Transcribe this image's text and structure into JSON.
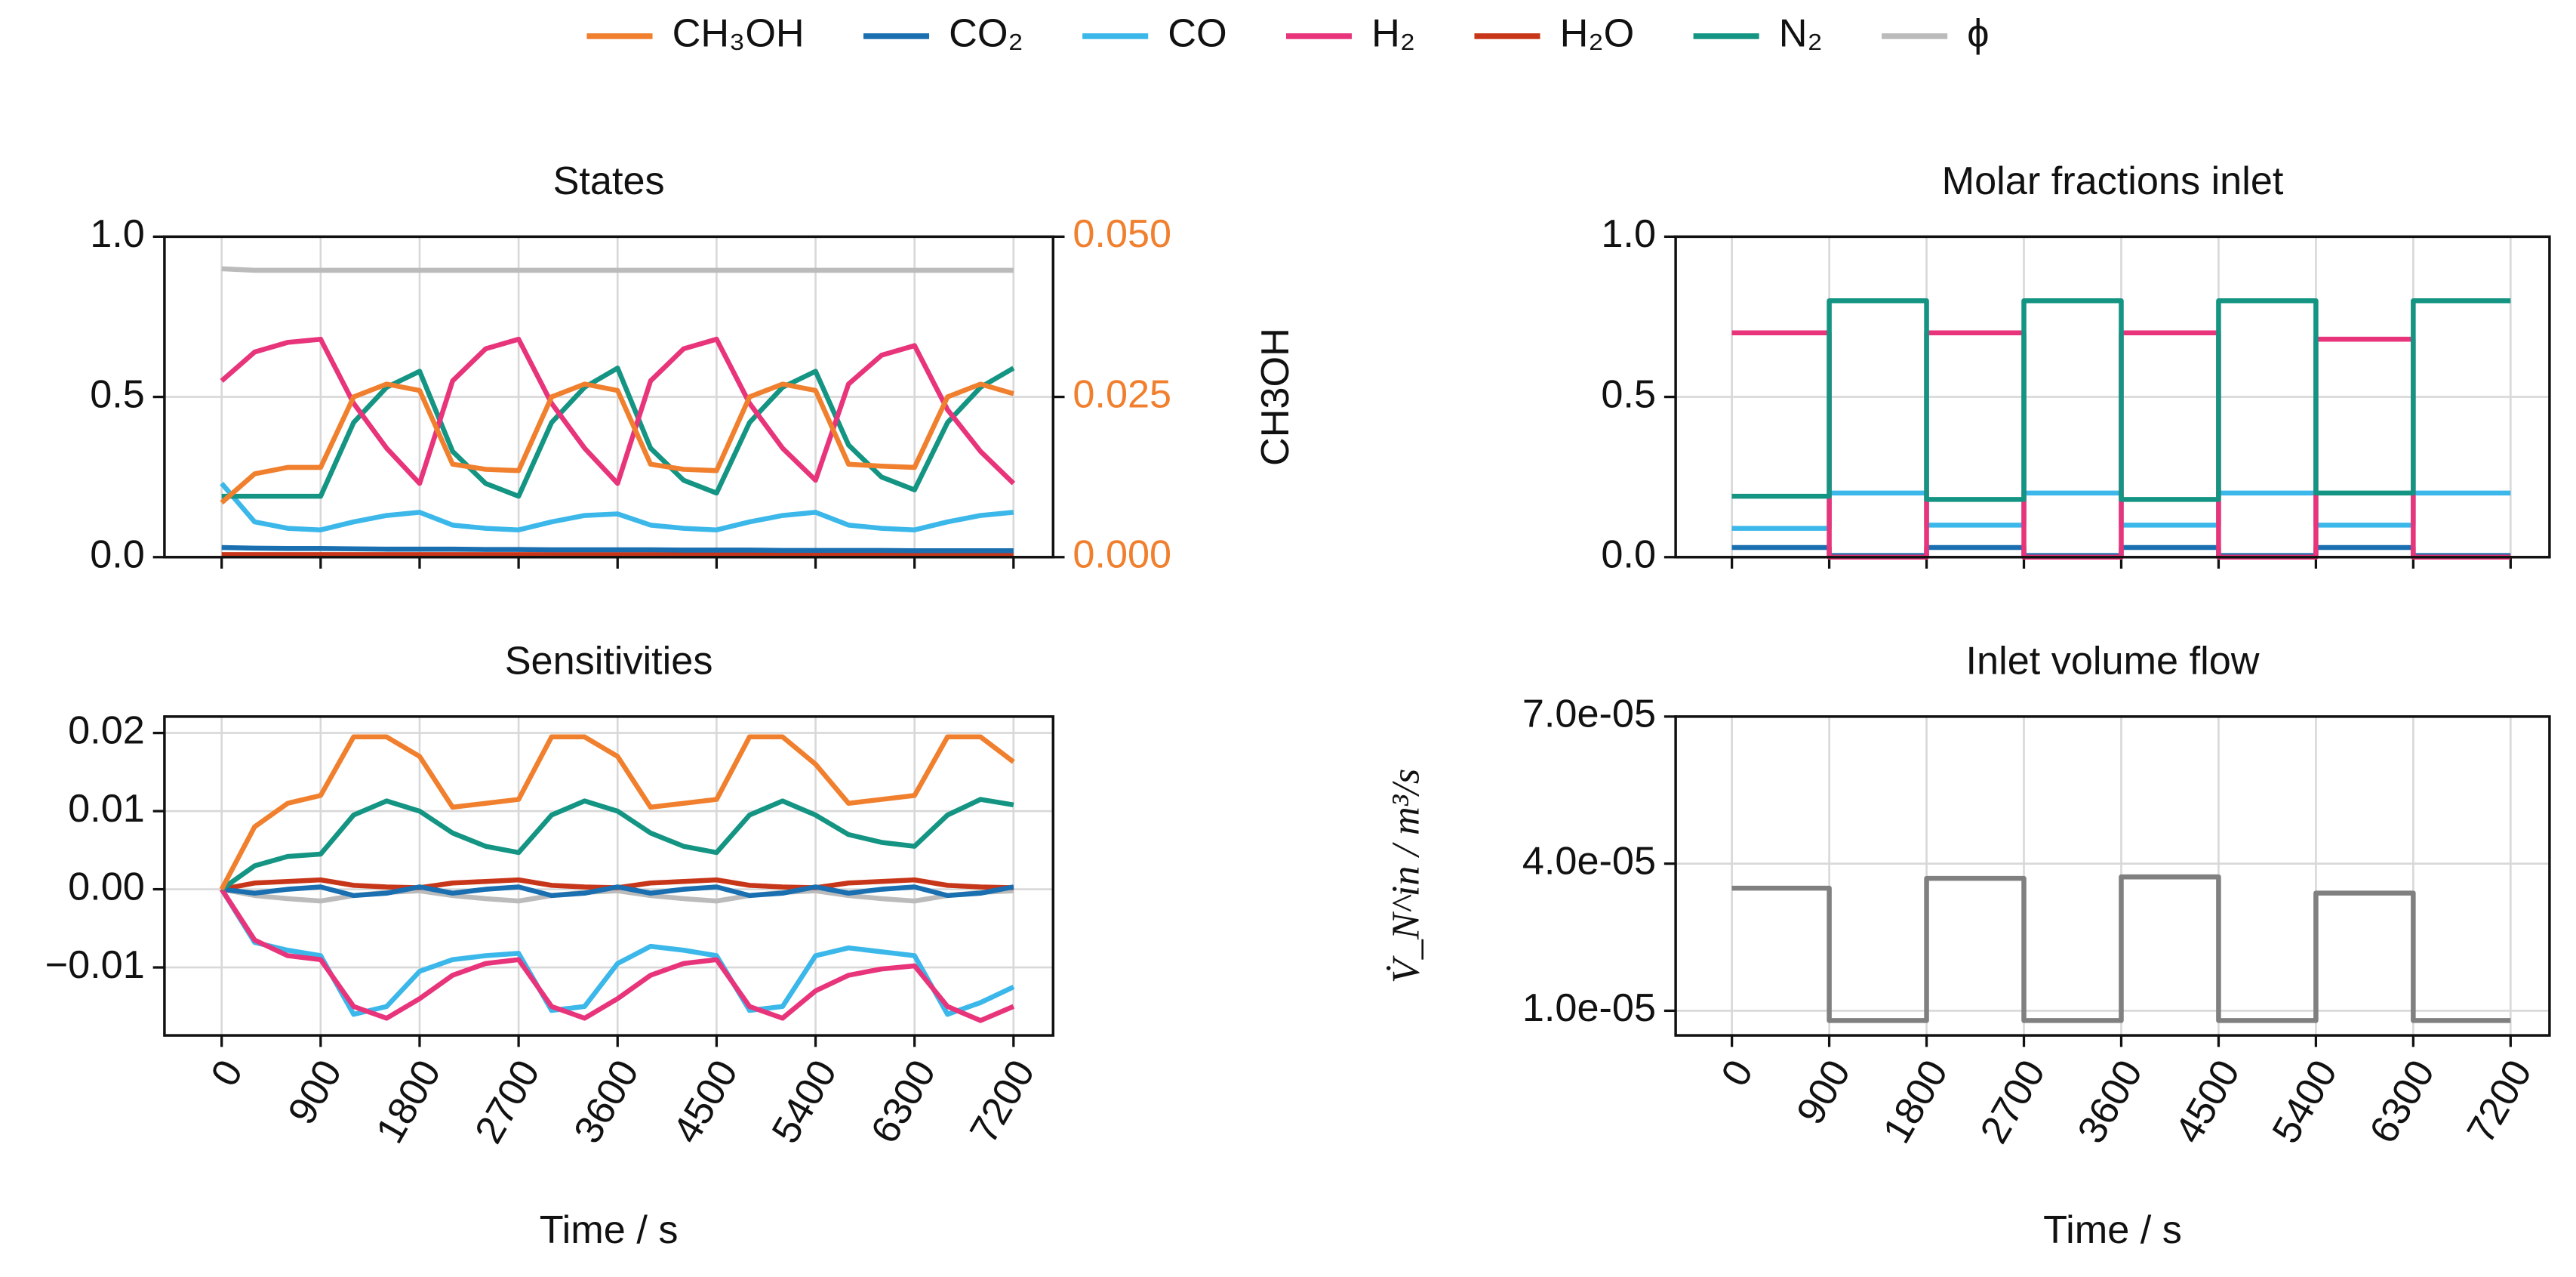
{
  "legend": [
    {
      "name": "CH₃OH",
      "color": "#f07f2e"
    },
    {
      "name": "CO₂",
      "color": "#1a6fb0"
    },
    {
      "name": "CO",
      "color": "#3bb7ea"
    },
    {
      "name": "H₂",
      "color": "#e8347a"
    },
    {
      "name": "H₂O",
      "color": "#c8361a"
    },
    {
      "name": "N₂",
      "color": "#149482"
    },
    {
      "name": "ϕ",
      "color": "#bbbbbb"
    }
  ],
  "legend_position": "upper center",
  "chart_data": [
    {
      "type": "line",
      "title": "States",
      "grid": true,
      "show_xticklabels": false,
      "y2label": "CH3OH",
      "x": [
        0,
        300,
        600,
        900,
        1200,
        1500,
        1800,
        2100,
        2400,
        2700,
        3000,
        3300,
        3600,
        3900,
        4200,
        4500,
        4800,
        5100,
        5400,
        5700,
        6000,
        6300,
        6600,
        6900,
        7200
      ],
      "xlim": [
        -520,
        7560
      ],
      "xticks": [
        0,
        900,
        1800,
        2700,
        3600,
        4500,
        5400,
        6300,
        7200
      ],
      "ylim": [
        0,
        1
      ],
      "yticks": [
        {
          "value": 0,
          "label": "0.0"
        },
        {
          "value": 0.5,
          "label": "0.5"
        },
        {
          "value": 1,
          "label": "1.0"
        }
      ],
      "y2lim": [
        0,
        0.05
      ],
      "y2ticks": [
        {
          "value": 0,
          "label": "0.000"
        },
        {
          "value": 0.025,
          "label": "0.025"
        },
        {
          "value": 0.05,
          "label": "0.050"
        }
      ],
      "series": [
        {
          "color": "#bbbbbb",
          "values": [
            0.9,
            0.895,
            0.895,
            0.895,
            0.895,
            0.895,
            0.895,
            0.895,
            0.895,
            0.895,
            0.895,
            0.895,
            0.895,
            0.895,
            0.895,
            0.895,
            0.895,
            0.895,
            0.895,
            0.895,
            0.895,
            0.895,
            0.895,
            0.895,
            0.895
          ]
        },
        {
          "color": "#c8361a",
          "values": [
            0.008,
            0.008,
            0.008,
            0.008,
            0.008,
            0.008,
            0.008,
            0.008,
            0.008,
            0.008,
            0.008,
            0.008,
            0.008,
            0.008,
            0.008,
            0.008,
            0.008,
            0.008,
            0.008,
            0.008,
            0.008,
            0.008,
            0.008,
            0.008,
            0.008
          ]
        },
        {
          "color": "#1a6fb0",
          "values": [
            0.03,
            0.028,
            0.027,
            0.027,
            0.026,
            0.025,
            0.025,
            0.025,
            0.024,
            0.024,
            0.023,
            0.023,
            0.023,
            0.023,
            0.022,
            0.022,
            0.022,
            0.021,
            0.021,
            0.021,
            0.021,
            0.02,
            0.02,
            0.02,
            0.02
          ]
        },
        {
          "color": "#3bb7ea",
          "values": [
            0.23,
            0.11,
            0.09,
            0.085,
            0.11,
            0.13,
            0.14,
            0.1,
            0.09,
            0.085,
            0.11,
            0.13,
            0.135,
            0.1,
            0.09,
            0.085,
            0.11,
            0.13,
            0.14,
            0.1,
            0.09,
            0.085,
            0.11,
            0.13,
            0.14
          ]
        },
        {
          "color": "#149482",
          "values": [
            0.19,
            0.19,
            0.19,
            0.19,
            0.42,
            0.53,
            0.58,
            0.33,
            0.23,
            0.19,
            0.42,
            0.53,
            0.59,
            0.34,
            0.24,
            0.2,
            0.42,
            0.53,
            0.58,
            0.35,
            0.25,
            0.21,
            0.42,
            0.53,
            0.59
          ]
        },
        {
          "color": "#e8347a",
          "values": [
            0.55,
            0.64,
            0.67,
            0.68,
            0.48,
            0.34,
            0.23,
            0.55,
            0.65,
            0.68,
            0.48,
            0.34,
            0.23,
            0.55,
            0.65,
            0.68,
            0.48,
            0.34,
            0.24,
            0.54,
            0.63,
            0.66,
            0.46,
            0.33,
            0.23
          ]
        },
        {
          "color": "#f07f2e",
          "axis": "y2",
          "values": [
            0.0085,
            0.013,
            0.014,
            0.014,
            0.025,
            0.027,
            0.026,
            0.0145,
            0.0137,
            0.0135,
            0.025,
            0.027,
            0.026,
            0.0145,
            0.0137,
            0.0135,
            0.025,
            0.027,
            0.026,
            0.0145,
            0.0142,
            0.014,
            0.025,
            0.027,
            0.0255
          ]
        }
      ]
    },
    {
      "type": "line",
      "title": "Molar fractions inlet",
      "grid": true,
      "show_xticklabels": false,
      "x": [
        0,
        900,
        900,
        1800,
        1800,
        2700,
        2700,
        3600,
        3600,
        4500,
        4500,
        5400,
        5400,
        6300,
        6300,
        7200
      ],
      "xlim": [
        -520,
        7560
      ],
      "xticks": [
        0,
        900,
        1800,
        2700,
        3600,
        4500,
        5400,
        6300,
        7200
      ],
      "ylim": [
        0,
        1
      ],
      "yticks": [
        {
          "value": 0,
          "label": "0.0"
        },
        {
          "value": 0.5,
          "label": "0.5"
        },
        {
          "value": 1,
          "label": "1.0"
        }
      ],
      "series": [
        {
          "color": "#1a6fb0",
          "values": [
            0.03,
            0.03,
            0.005,
            0.005,
            0.03,
            0.03,
            0.005,
            0.005,
            0.03,
            0.03,
            0.005,
            0.005,
            0.03,
            0.03,
            0.005,
            0.005
          ]
        },
        {
          "color": "#3bb7ea",
          "values": [
            0.09,
            0.09,
            0.2,
            0.2,
            0.1,
            0.1,
            0.2,
            0.2,
            0.1,
            0.1,
            0.2,
            0.2,
            0.1,
            0.1,
            0.2,
            0.2
          ]
        },
        {
          "color": "#e8347a",
          "values": [
            0.7,
            0.7,
            0,
            0,
            0.7,
            0.7,
            0,
            0,
            0.7,
            0.7,
            0,
            0,
            0.68,
            0.68,
            0,
            0
          ]
        },
        {
          "color": "#149482",
          "values": [
            0.19,
            0.19,
            0.8,
            0.8,
            0.18,
            0.18,
            0.8,
            0.8,
            0.18,
            0.18,
            0.8,
            0.8,
            0.2,
            0.2,
            0.8,
            0.8
          ]
        }
      ]
    },
    {
      "type": "line",
      "title": "Sensitivities",
      "grid": true,
      "show_xticklabels": true,
      "xlabel": "Time / s",
      "x": [
        0,
        300,
        600,
        900,
        1200,
        1500,
        1800,
        2100,
        2400,
        2700,
        3000,
        3300,
        3600,
        3900,
        4200,
        4500,
        4800,
        5100,
        5400,
        5700,
        6000,
        6300,
        6600,
        6900,
        7200
      ],
      "xlim": [
        -520,
        7560
      ],
      "xticks": [
        0,
        900,
        1800,
        2700,
        3600,
        4500,
        5400,
        6300,
        7200
      ],
      "ylim": [
        -0.0187,
        0.0221
      ],
      "yticks": [
        {
          "value": -0.01,
          "label": "−0.01"
        },
        {
          "value": 0,
          "label": "0.00"
        },
        0.01,
        0.02
      ],
      "series": [
        {
          "color": "#bbbbbb",
          "values": [
            0,
            -0.0008,
            -0.0012,
            -0.0015,
            -0.0008,
            -0.0004,
            -0.0002,
            -0.0008,
            -0.0012,
            -0.0015,
            -0.0008,
            -0.0004,
            -0.0002,
            -0.0008,
            -0.0012,
            -0.0015,
            -0.0008,
            -0.0004,
            -0.0002,
            -0.0008,
            -0.0012,
            -0.0015,
            -0.0008,
            -0.0004,
            -0.0002
          ]
        },
        {
          "color": "#c8361a",
          "values": [
            0,
            0.0008,
            0.001,
            0.0012,
            0.0005,
            0.0003,
            0.0002,
            0.0008,
            0.001,
            0.0012,
            0.0005,
            0.0003,
            0.0002,
            0.0008,
            0.001,
            0.0012,
            0.0005,
            0.0003,
            0.0002,
            0.0008,
            0.001,
            0.0012,
            0.0005,
            0.0003,
            0.0002
          ]
        },
        {
          "color": "#1a6fb0",
          "values": [
            0,
            -0.0005,
            0,
            0.0003,
            -0.0008,
            -0.0005,
            0.0003,
            -0.0005,
            0,
            0.0003,
            -0.0008,
            -0.0005,
            0.0003,
            -0.0005,
            0,
            0.0003,
            -0.0008,
            -0.0005,
            0.0003,
            -0.0005,
            0,
            0.0003,
            -0.0008,
            -0.0005,
            0.0003
          ]
        },
        {
          "color": "#3bb7ea",
          "values": [
            0,
            -0.0068,
            -0.0078,
            -0.0085,
            -0.016,
            -0.015,
            -0.0105,
            -0.009,
            -0.0085,
            -0.0082,
            -0.0155,
            -0.015,
            -0.0095,
            -0.0073,
            -0.0078,
            -0.0085,
            -0.0155,
            -0.015,
            -0.0085,
            -0.0075,
            -0.008,
            -0.0085,
            -0.016,
            -0.0145,
            -0.0125
          ]
        },
        {
          "color": "#e8347a",
          "values": [
            0,
            -0.0065,
            -0.0085,
            -0.009,
            -0.015,
            -0.0165,
            -0.014,
            -0.011,
            -0.0095,
            -0.009,
            -0.015,
            -0.0165,
            -0.014,
            -0.011,
            -0.0095,
            -0.009,
            -0.015,
            -0.0165,
            -0.013,
            -0.011,
            -0.0102,
            -0.0098,
            -0.015,
            -0.0168,
            -0.015
          ]
        },
        {
          "color": "#149482",
          "values": [
            0,
            0.003,
            0.0042,
            0.0045,
            0.0095,
            0.0113,
            0.01,
            0.0072,
            0.0055,
            0.0047,
            0.0095,
            0.0113,
            0.01,
            0.0072,
            0.0055,
            0.0047,
            0.0095,
            0.0113,
            0.0095,
            0.007,
            0.006,
            0.0055,
            0.0095,
            0.0115,
            0.0108
          ]
        },
        {
          "color": "#f07f2e",
          "values": [
            0,
            0.008,
            0.011,
            0.012,
            0.0195,
            0.0195,
            0.017,
            0.0105,
            0.011,
            0.0115,
            0.0195,
            0.0195,
            0.017,
            0.0105,
            0.011,
            0.0115,
            0.0195,
            0.0195,
            0.016,
            0.011,
            0.0115,
            0.012,
            0.0195,
            0.0195,
            0.0163
          ]
        }
      ]
    },
    {
      "type": "line",
      "title": "Inlet volume flow",
      "grid": true,
      "show_xticklabels": true,
      "xlabel": "Time / s",
      "ylabel": "V̇_N^in / m³/s",
      "x": [
        0,
        900,
        900,
        1800,
        1800,
        2700,
        2700,
        3600,
        3600,
        4500,
        4500,
        5400,
        5400,
        6300,
        6300,
        7200
      ],
      "xlim": [
        -520,
        7560
      ],
      "xticks": [
        0,
        900,
        1800,
        2700,
        3600,
        4500,
        5400,
        6300,
        7200
      ],
      "ylim": [
        4.97e-06,
        7e-05
      ],
      "yticks": [
        {
          "value": 1e-05,
          "label": "1.0e-05"
        },
        {
          "value": 4e-05,
          "label": "4.0e-05"
        },
        {
          "value": 7e-05,
          "label": "7.0e-05"
        }
      ],
      "series": [
        {
          "color": "#808080",
          "values": [
            3.5e-05,
            3.5e-05,
            8e-06,
            8e-06,
            3.7e-05,
            3.7e-05,
            8e-06,
            8e-06,
            3.73e-05,
            3.73e-05,
            8e-06,
            8e-06,
            3.4e-05,
            3.4e-05,
            8e-06,
            8e-06
          ]
        }
      ]
    }
  ]
}
